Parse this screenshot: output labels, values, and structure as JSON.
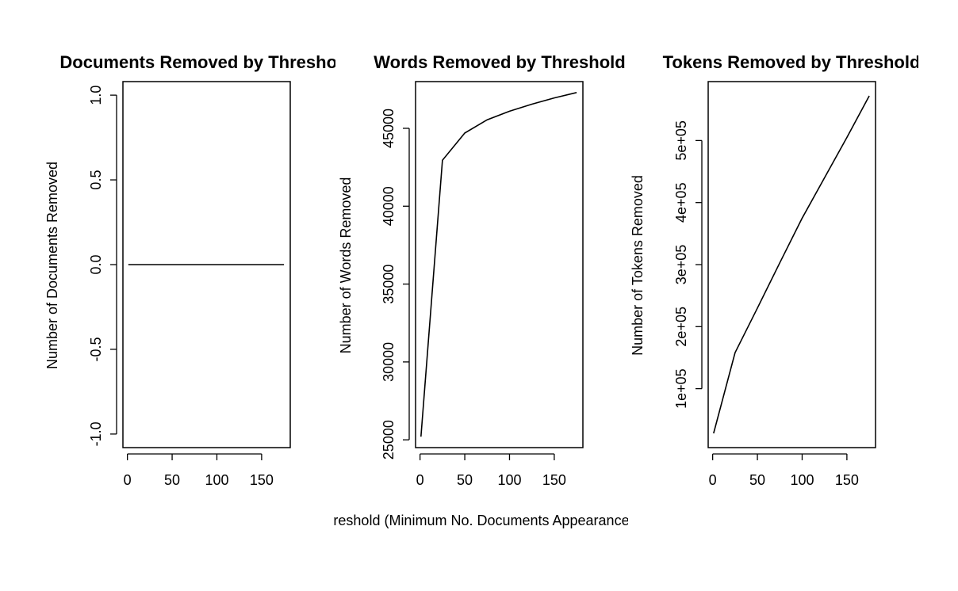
{
  "shared_xlabel": "Threshold (Minimum No. Documents Appearances)",
  "chart_data": [
    {
      "type": "line",
      "title": "Documents Removed by Threshold",
      "xlabel": "",
      "ylabel": "Number of Documents Removed",
      "xlim": [
        -5,
        182
      ],
      "ylim": [
        -1.08,
        1.08
      ],
      "x_ticks": [
        "0",
        "50",
        "100",
        "150"
      ],
      "y_ticks": [
        "-1.0",
        "-0.5",
        "0.0",
        "0.5",
        "1.0"
      ],
      "x": [
        1,
        25,
        50,
        75,
        100,
        125,
        150,
        175
      ],
      "y": [
        0,
        0,
        0,
        0,
        0,
        0,
        0,
        0
      ]
    },
    {
      "type": "line",
      "title": "Words Removed by Threshold",
      "xlabel": "",
      "ylabel": "Number of Words Removed",
      "xlim": [
        -5,
        182
      ],
      "ylim": [
        24500,
        48000
      ],
      "x_ticks": [
        "0",
        "50",
        "100",
        "150"
      ],
      "y_ticks": [
        "25000",
        "30000",
        "35000",
        "40000",
        "45000"
      ],
      "x": [
        1,
        25,
        50,
        75,
        100,
        125,
        150,
        175
      ],
      "y": [
        25200,
        42950,
        44700,
        45550,
        46100,
        46550,
        46950,
        47300
      ]
    },
    {
      "type": "line",
      "title": "Tokens Removed by Threshold",
      "xlabel": "",
      "ylabel": "Number of Tokens Removed",
      "xlim": [
        -5,
        182
      ],
      "ylim": [
        5000,
        595000
      ],
      "x_ticks": [
        "0",
        "50",
        "100",
        "150"
      ],
      "y_ticks": [
        "1e+05",
        "2e+05",
        "3e+05",
        "4e+05",
        "5e+05"
      ],
      "x": [
        1,
        25,
        50,
        75,
        100,
        125,
        150,
        175
      ],
      "y": [
        28000,
        158000,
        230000,
        303000,
        375000,
        440000,
        505000,
        572000
      ]
    }
  ]
}
